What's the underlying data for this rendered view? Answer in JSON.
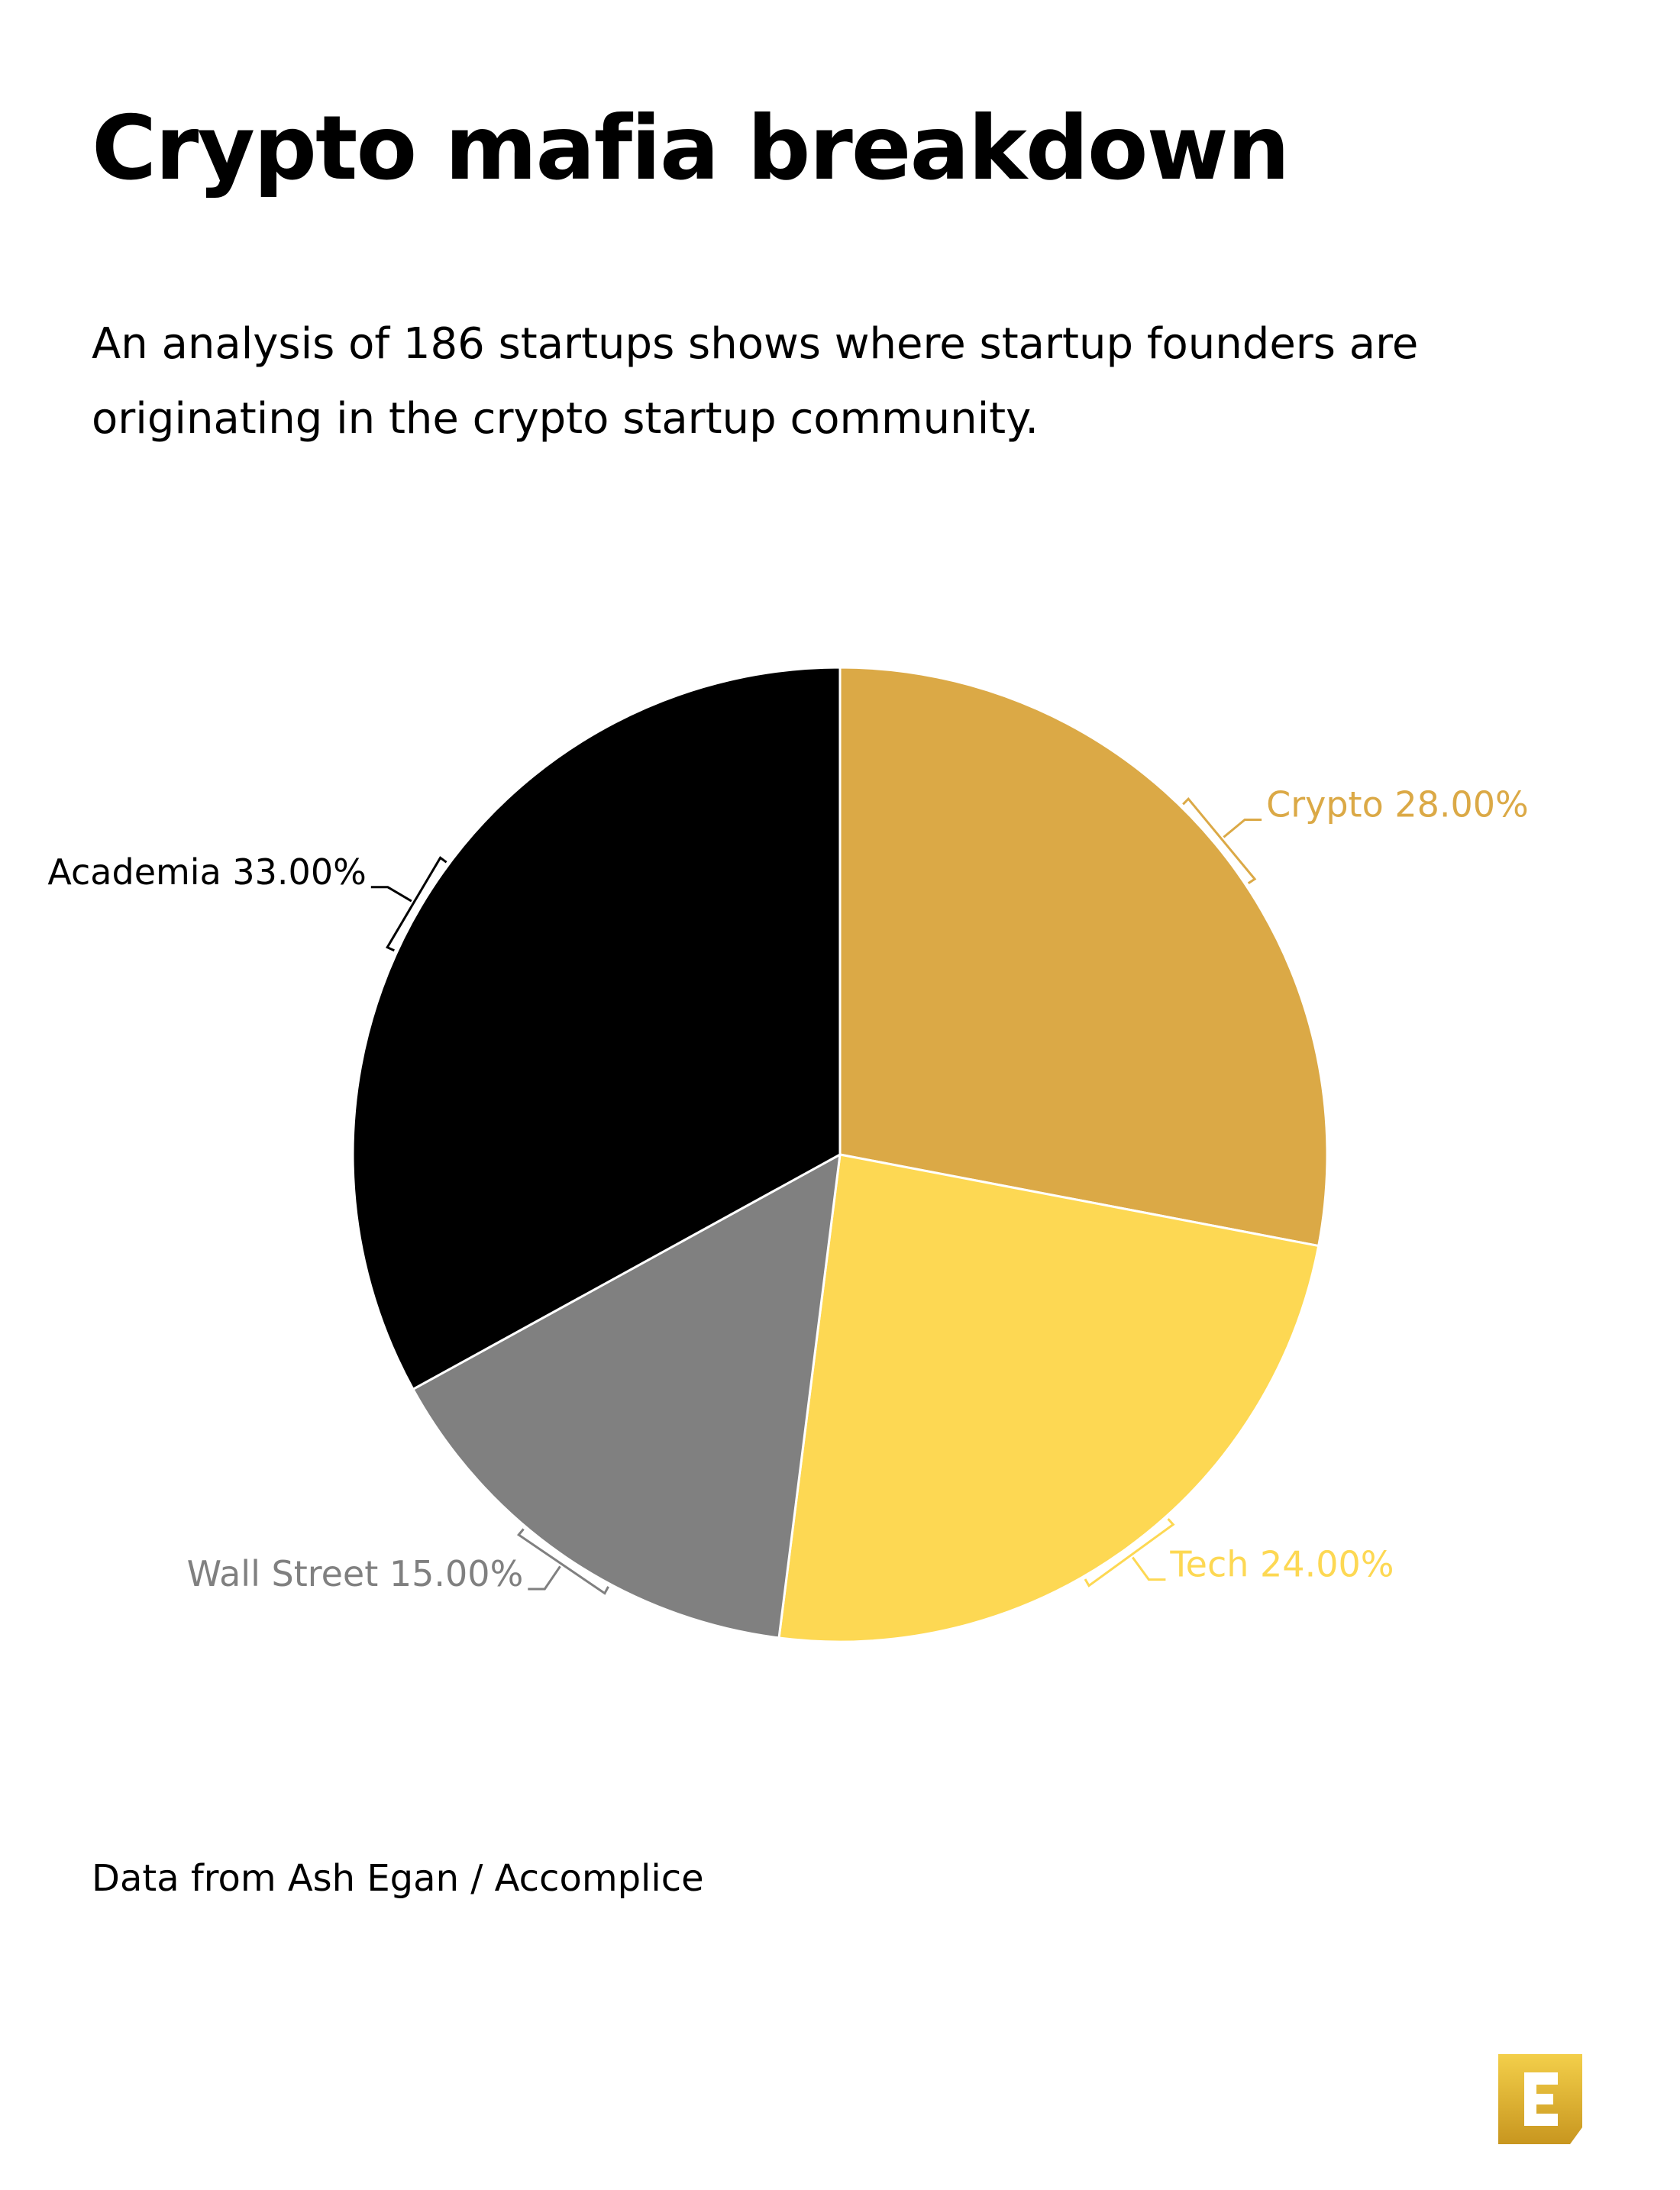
{
  "title": "Crypto mafia breakdown",
  "subtitle": "An analysis of 186 startups shows where startup founders are originating in the crypto startup community.",
  "source": "Data from Ash Egan / Accomplice",
  "logo": {
    "icon": "brand-logo-e-icon",
    "color_top": "#f3cf4a",
    "color_bottom": "#c8961f"
  },
  "chart_data": {
    "type": "pie",
    "title": "Crypto mafia breakdown",
    "start_angle_deg": 0,
    "direction": "clockwise",
    "slices": [
      {
        "name": "Crypto",
        "value": 28.0,
        "label": "Crypto 28.00%",
        "color": "#dba946"
      },
      {
        "name": "Tech",
        "value": 24.0,
        "label": "Tech 24.00%",
        "color": "#fdd853"
      },
      {
        "name": "Wall Street",
        "value": 15.0,
        "label": "Wall Street 15.00%",
        "color": "#808080"
      },
      {
        "name": "Academia",
        "value": 33.0,
        "label": "Academia 33.00%",
        "color": "#000000"
      }
    ]
  }
}
